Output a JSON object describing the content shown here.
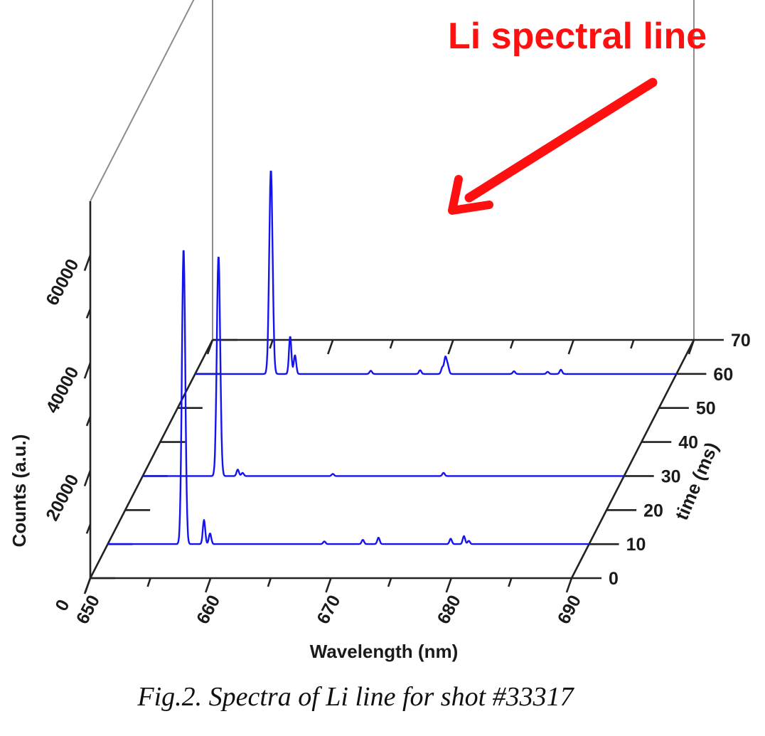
{
  "caption": "Fig.2. Spectra of Li line for shot #33317",
  "annotation": {
    "text": "Li spectral line",
    "color": "#ff1010"
  },
  "chart_data": {
    "type": "line",
    "projection": "3d-waterfall",
    "xlabel": "Wavelength (nm)",
    "ylabel": "time (ms)",
    "zlabel": "Counts (a.u.)",
    "xlim": [
      650,
      690
    ],
    "ylim": [
      0,
      70
    ],
    "zlim": [
      0,
      70000
    ],
    "x_ticks": [
      "650",
      "660",
      "670",
      "680",
      "690"
    ],
    "y_ticks": [
      "0",
      "10",
      "20",
      "30",
      "40",
      "50",
      "60",
      "70"
    ],
    "z_ticks": [
      "0",
      "20000",
      "40000",
      "60000"
    ],
    "series_color": "#1414ee",
    "series": [
      {
        "time": 10,
        "baseline": 0,
        "peaks": [
          [
            656.3,
            55000
          ],
          [
            658.0,
            4500
          ],
          [
            658.5,
            2000
          ],
          [
            668.0,
            500
          ],
          [
            671.2,
            800
          ],
          [
            672.5,
            1200
          ],
          [
            678.5,
            1000
          ],
          [
            679.6,
            1500
          ],
          [
            680.0,
            600
          ]
        ]
      },
      {
        "time": 30,
        "baseline": 0,
        "peaks": [
          [
            656.3,
            41000
          ],
          [
            657.9,
            1200
          ],
          [
            658.3,
            600
          ],
          [
            665.8,
            400
          ],
          [
            675.0,
            600
          ]
        ]
      },
      {
        "time": 60,
        "baseline": 0,
        "peaks": [
          [
            656.3,
            38000
          ],
          [
            657.9,
            7000
          ],
          [
            658.3,
            3500
          ],
          [
            664.6,
            600
          ],
          [
            668.7,
            700
          ],
          [
            670.8,
            3000
          ],
          [
            670.55,
            1200
          ],
          [
            671.0,
            1500
          ],
          [
            676.5,
            500
          ],
          [
            679.3,
            400
          ],
          [
            680.4,
            800
          ]
        ]
      }
    ]
  }
}
